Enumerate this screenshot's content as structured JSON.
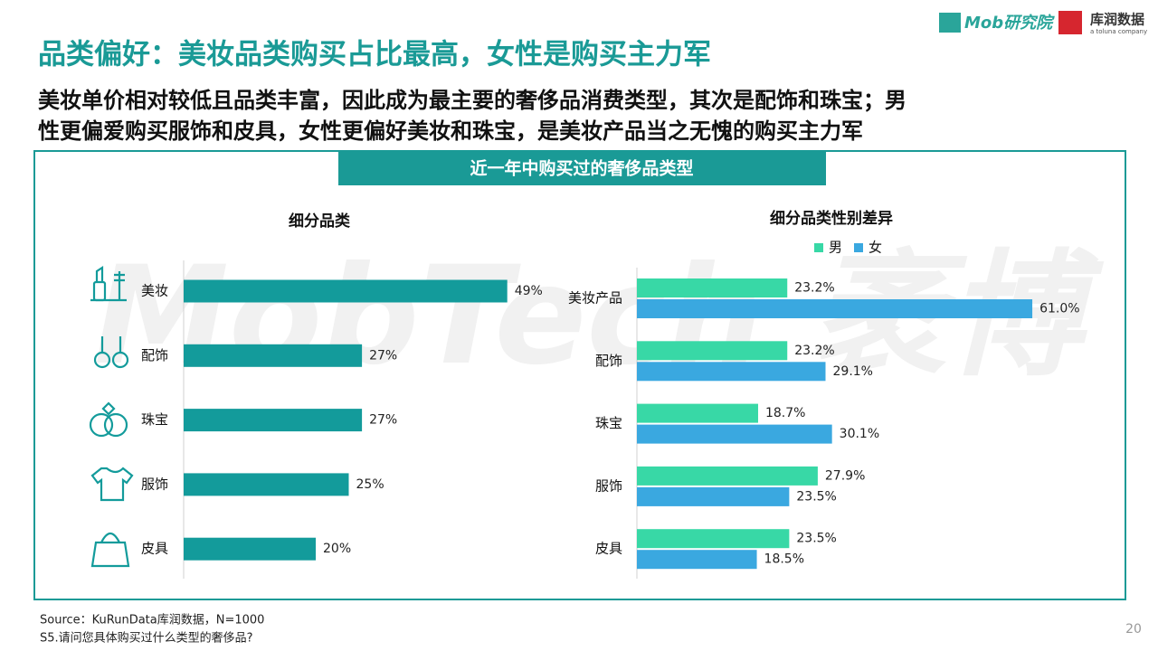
{
  "header": {
    "title": "品类偏好：美妆品类购买占比最高，女性是购买主力军",
    "subtitle_lines": [
      "美妆单价相对较低且品类丰富，因此成为最主要的奢侈品消费类型，其次是配饰和珠宝；男",
      "性更偏爱购买服饰和皮具，女性更偏好美妆和珠宝，是美妆产品当之无愧的购买主力军"
    ]
  },
  "logos": {
    "mob": "Mob研究院",
    "kurun": "库润数据",
    "toluna": "a toluna company"
  },
  "panel_title": "近一年中购买过的奢侈品类型",
  "watermark": "MobTech 袤博",
  "chart_data": [
    {
      "type": "bar",
      "title": "细分品类",
      "categories": [
        "美妆",
        "配饰",
        "珠宝",
        "服饰",
        "皮具"
      ],
      "values": [
        49,
        27,
        27,
        25,
        20
      ],
      "value_labels": [
        "49%",
        "27%",
        "27%",
        "25%",
        "20%"
      ],
      "color": "#139b9b"
    },
    {
      "type": "bar",
      "title": "细分品类性别差异",
      "categories": [
        "美妆产品",
        "配饰",
        "珠宝",
        "服饰",
        "皮具"
      ],
      "legend": "top",
      "series": [
        {
          "name": "男",
          "color": "#38d8a6",
          "values": [
            23.2,
            23.2,
            18.7,
            27.9,
            23.5
          ],
          "value_labels": [
            "23.2%",
            "23.2%",
            "18.7%",
            "27.9%",
            "23.5%"
          ]
        },
        {
          "name": "女",
          "color": "#3aa8e0",
          "values": [
            61.0,
            29.1,
            30.1,
            23.5,
            18.5
          ],
          "value_labels": [
            "61.0%",
            "29.1%",
            "30.1%",
            "23.5%",
            "18.5%"
          ]
        }
      ]
    }
  ],
  "footer": {
    "source": "Source：KuRunData库润数据，N=1000",
    "question": "S5.请问您具体购买过什么类型的奢侈品?",
    "page": 20
  }
}
